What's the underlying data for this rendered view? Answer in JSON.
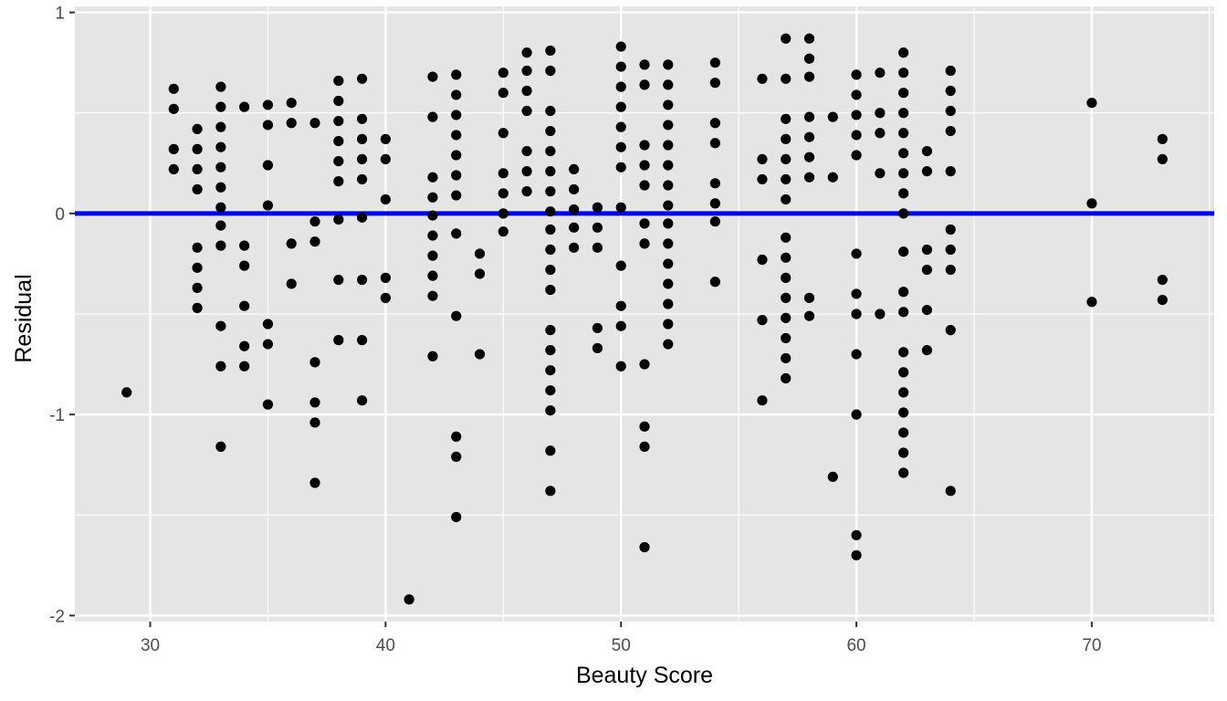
{
  "chart_data": {
    "type": "scatter",
    "title": "",
    "xlabel": "Beauty Score",
    "ylabel": "Residual",
    "xlim": [
      26.8,
      75.2
    ],
    "ylim": [
      -2.03,
      1.03
    ],
    "x_ticks": [
      30,
      40,
      50,
      60,
      70
    ],
    "y_ticks": [
      -2,
      -1,
      0,
      1
    ],
    "grid": true,
    "legend": "none",
    "reference_line": {
      "y": 0,
      "color": "#0000ff"
    },
    "point_color": "#000000",
    "panel_background": "#e5e5e5",
    "points": [
      [
        29,
        -0.89
      ],
      [
        31,
        0.62
      ],
      [
        31,
        0.52
      ],
      [
        31,
        0.32
      ],
      [
        31,
        0.22
      ],
      [
        32,
        0.42
      ],
      [
        32,
        0.32
      ],
      [
        32,
        0.22
      ],
      [
        32,
        0.12
      ],
      [
        32,
        -0.17
      ],
      [
        32,
        -0.27
      ],
      [
        32,
        -0.37
      ],
      [
        32,
        -0.47
      ],
      [
        33,
        0.63
      ],
      [
        33,
        0.53
      ],
      [
        33,
        0.43
      ],
      [
        33,
        0.33
      ],
      [
        33,
        0.23
      ],
      [
        33,
        0.13
      ],
      [
        33,
        0.03
      ],
      [
        33,
        -0.06
      ],
      [
        33,
        -0.16
      ],
      [
        33,
        -0.56
      ],
      [
        33,
        -0.76
      ],
      [
        33,
        -1.16
      ],
      [
        34,
        0.53
      ],
      [
        34,
        -0.16
      ],
      [
        34,
        -0.26
      ],
      [
        34,
        -0.46
      ],
      [
        34,
        -0.66
      ],
      [
        34,
        -0.76
      ],
      [
        35,
        0.54
      ],
      [
        35,
        0.44
      ],
      [
        35,
        0.24
      ],
      [
        35,
        0.04
      ],
      [
        35,
        -0.55
      ],
      [
        35,
        -0.65
      ],
      [
        35,
        -0.95
      ],
      [
        36,
        0.55
      ],
      [
        36,
        0.45
      ],
      [
        36,
        -0.15
      ],
      [
        36,
        -0.35
      ],
      [
        37,
        0.45
      ],
      [
        37,
        -0.04
      ],
      [
        37,
        -0.14
      ],
      [
        37,
        -0.74
      ],
      [
        37,
        -0.94
      ],
      [
        37,
        -1.04
      ],
      [
        37,
        -1.34
      ],
      [
        38,
        0.66
      ],
      [
        38,
        0.56
      ],
      [
        38,
        0.46
      ],
      [
        38,
        0.36
      ],
      [
        38,
        0.26
      ],
      [
        38,
        0.16
      ],
      [
        38,
        -0.03
      ],
      [
        38,
        -0.33
      ],
      [
        38,
        -0.63
      ],
      [
        39,
        0.67
      ],
      [
        39,
        0.47
      ],
      [
        39,
        0.37
      ],
      [
        39,
        0.27
      ],
      [
        39,
        0.17
      ],
      [
        39,
        -0.02
      ],
      [
        39,
        -0.33
      ],
      [
        39,
        -0.63
      ],
      [
        39,
        -0.93
      ],
      [
        40,
        0.37
      ],
      [
        40,
        0.27
      ],
      [
        40,
        0.07
      ],
      [
        40,
        -0.32
      ],
      [
        40,
        -0.42
      ],
      [
        41,
        -1.92
      ],
      [
        42,
        0.68
      ],
      [
        42,
        0.48
      ],
      [
        42,
        0.18
      ],
      [
        42,
        0.08
      ],
      [
        42,
        -0.01
      ],
      [
        42,
        -0.11
      ],
      [
        42,
        -0.21
      ],
      [
        42,
        -0.31
      ],
      [
        42,
        -0.41
      ],
      [
        42,
        -0.71
      ],
      [
        43,
        0.69
      ],
      [
        43,
        0.59
      ],
      [
        43,
        0.49
      ],
      [
        43,
        0.39
      ],
      [
        43,
        0.29
      ],
      [
        43,
        0.19
      ],
      [
        43,
        0.09
      ],
      [
        43,
        -0.1
      ],
      [
        43,
        -0.51
      ],
      [
        43,
        -1.11
      ],
      [
        43,
        -1.21
      ],
      [
        43,
        -1.51
      ],
      [
        44,
        -0.2
      ],
      [
        44,
        -0.3
      ],
      [
        44,
        -0.7
      ],
      [
        45,
        0.7
      ],
      [
        45,
        0.6
      ],
      [
        45,
        0.4
      ],
      [
        45,
        0.2
      ],
      [
        45,
        0.1
      ],
      [
        45,
        0.0
      ],
      [
        45,
        -0.09
      ],
      [
        46,
        0.8
      ],
      [
        46,
        0.71
      ],
      [
        46,
        0.61
      ],
      [
        46,
        0.51
      ],
      [
        46,
        0.31
      ],
      [
        46,
        0.21
      ],
      [
        46,
        0.11
      ],
      [
        47,
        0.81
      ],
      [
        47,
        0.71
      ],
      [
        47,
        0.51
      ],
      [
        47,
        0.41
      ],
      [
        47,
        0.31
      ],
      [
        47,
        0.21
      ],
      [
        47,
        0.11
      ],
      [
        47,
        0.01
      ],
      [
        47,
        -0.08
      ],
      [
        47,
        -0.18
      ],
      [
        47,
        -0.28
      ],
      [
        47,
        -0.38
      ],
      [
        47,
        -0.58
      ],
      [
        47,
        -0.68
      ],
      [
        47,
        -0.78
      ],
      [
        47,
        -0.88
      ],
      [
        47,
        -0.98
      ],
      [
        47,
        -1.18
      ],
      [
        47,
        -1.38
      ],
      [
        48,
        0.22
      ],
      [
        48,
        0.12
      ],
      [
        48,
        0.02
      ],
      [
        48,
        -0.07
      ],
      [
        48,
        -0.17
      ],
      [
        49,
        0.03
      ],
      [
        49,
        -0.07
      ],
      [
        49,
        -0.17
      ],
      [
        49,
        -0.57
      ],
      [
        49,
        -0.67
      ],
      [
        50,
        0.83
      ],
      [
        50,
        0.73
      ],
      [
        50,
        0.63
      ],
      [
        50,
        0.53
      ],
      [
        50,
        0.43
      ],
      [
        50,
        0.33
      ],
      [
        50,
        0.23
      ],
      [
        50,
        0.03
      ],
      [
        50,
        -0.26
      ],
      [
        50,
        -0.46
      ],
      [
        50,
        -0.56
      ],
      [
        50,
        -0.76
      ],
      [
        51,
        0.74
      ],
      [
        51,
        0.64
      ],
      [
        51,
        0.34
      ],
      [
        51,
        0.24
      ],
      [
        51,
        0.14
      ],
      [
        51,
        -0.05
      ],
      [
        51,
        -0.15
      ],
      [
        51,
        -0.75
      ],
      [
        51,
        -1.06
      ],
      [
        51,
        -1.16
      ],
      [
        51,
        -1.66
      ],
      [
        52,
        0.74
      ],
      [
        52,
        0.64
      ],
      [
        52,
        0.54
      ],
      [
        52,
        0.44
      ],
      [
        52,
        0.34
      ],
      [
        52,
        0.24
      ],
      [
        52,
        0.14
      ],
      [
        52,
        0.04
      ],
      [
        52,
        -0.05
      ],
      [
        52,
        -0.15
      ],
      [
        52,
        -0.25
      ],
      [
        52,
        -0.35
      ],
      [
        52,
        -0.45
      ],
      [
        52,
        -0.55
      ],
      [
        52,
        -0.65
      ],
      [
        54,
        0.75
      ],
      [
        54,
        0.65
      ],
      [
        54,
        0.45
      ],
      [
        54,
        0.35
      ],
      [
        54,
        0.15
      ],
      [
        54,
        0.05
      ],
      [
        54,
        -0.04
      ],
      [
        54,
        -0.34
      ],
      [
        56,
        0.67
      ],
      [
        56,
        0.27
      ],
      [
        56,
        0.17
      ],
      [
        56,
        -0.23
      ],
      [
        56,
        -0.53
      ],
      [
        56,
        -0.93
      ],
      [
        57,
        0.87
      ],
      [
        57,
        0.67
      ],
      [
        57,
        0.47
      ],
      [
        57,
        0.37
      ],
      [
        57,
        0.27
      ],
      [
        57,
        0.17
      ],
      [
        57,
        0.07
      ],
      [
        57,
        -0.12
      ],
      [
        57,
        -0.22
      ],
      [
        57,
        -0.32
      ],
      [
        57,
        -0.42
      ],
      [
        57,
        -0.52
      ],
      [
        57,
        -0.62
      ],
      [
        57,
        -0.72
      ],
      [
        57,
        -0.82
      ],
      [
        58,
        0.87
      ],
      [
        58,
        0.77
      ],
      [
        58,
        0.68
      ],
      [
        58,
        0.48
      ],
      [
        58,
        0.38
      ],
      [
        58,
        0.28
      ],
      [
        58,
        0.18
      ],
      [
        58,
        -0.42
      ],
      [
        58,
        -0.51
      ],
      [
        59,
        0.48
      ],
      [
        59,
        0.18
      ],
      [
        59,
        -1.31
      ],
      [
        60,
        0.69
      ],
      [
        60,
        0.59
      ],
      [
        60,
        0.49
      ],
      [
        60,
        0.39
      ],
      [
        60,
        0.29
      ],
      [
        60,
        -0.2
      ],
      [
        60,
        -0.4
      ],
      [
        60,
        -0.5
      ],
      [
        60,
        -0.7
      ],
      [
        60,
        -1.0
      ],
      [
        60,
        -1.6
      ],
      [
        60,
        -1.7
      ],
      [
        61,
        0.7
      ],
      [
        61,
        0.5
      ],
      [
        61,
        0.4
      ],
      [
        61,
        0.2
      ],
      [
        61,
        -0.5
      ],
      [
        62,
        0.8
      ],
      [
        62,
        0.7
      ],
      [
        62,
        0.6
      ],
      [
        62,
        0.5
      ],
      [
        62,
        0.4
      ],
      [
        62,
        0.3
      ],
      [
        62,
        0.2
      ],
      [
        62,
        0.1
      ],
      [
        62,
        0.0
      ],
      [
        62,
        -0.19
      ],
      [
        62,
        -0.39
      ],
      [
        62,
        -0.49
      ],
      [
        62,
        -0.69
      ],
      [
        62,
        -0.79
      ],
      [
        62,
        -0.89
      ],
      [
        62,
        -0.99
      ],
      [
        62,
        -1.09
      ],
      [
        62,
        -1.19
      ],
      [
        62,
        -1.29
      ],
      [
        63,
        0.31
      ],
      [
        63,
        0.21
      ],
      [
        63,
        -0.18
      ],
      [
        63,
        -0.28
      ],
      [
        63,
        -0.48
      ],
      [
        63,
        -0.68
      ],
      [
        64,
        0.71
      ],
      [
        64,
        0.61
      ],
      [
        64,
        0.51
      ],
      [
        64,
        0.41
      ],
      [
        64,
        0.21
      ],
      [
        64,
        -0.08
      ],
      [
        64,
        -0.18
      ],
      [
        64,
        -0.28
      ],
      [
        64,
        -0.58
      ],
      [
        64,
        -1.38
      ],
      [
        70,
        0.55
      ],
      [
        70,
        0.05
      ],
      [
        70,
        -0.44
      ],
      [
        73,
        0.37
      ],
      [
        73,
        0.27
      ],
      [
        73,
        -0.33
      ],
      [
        73,
        -0.43
      ]
    ]
  }
}
